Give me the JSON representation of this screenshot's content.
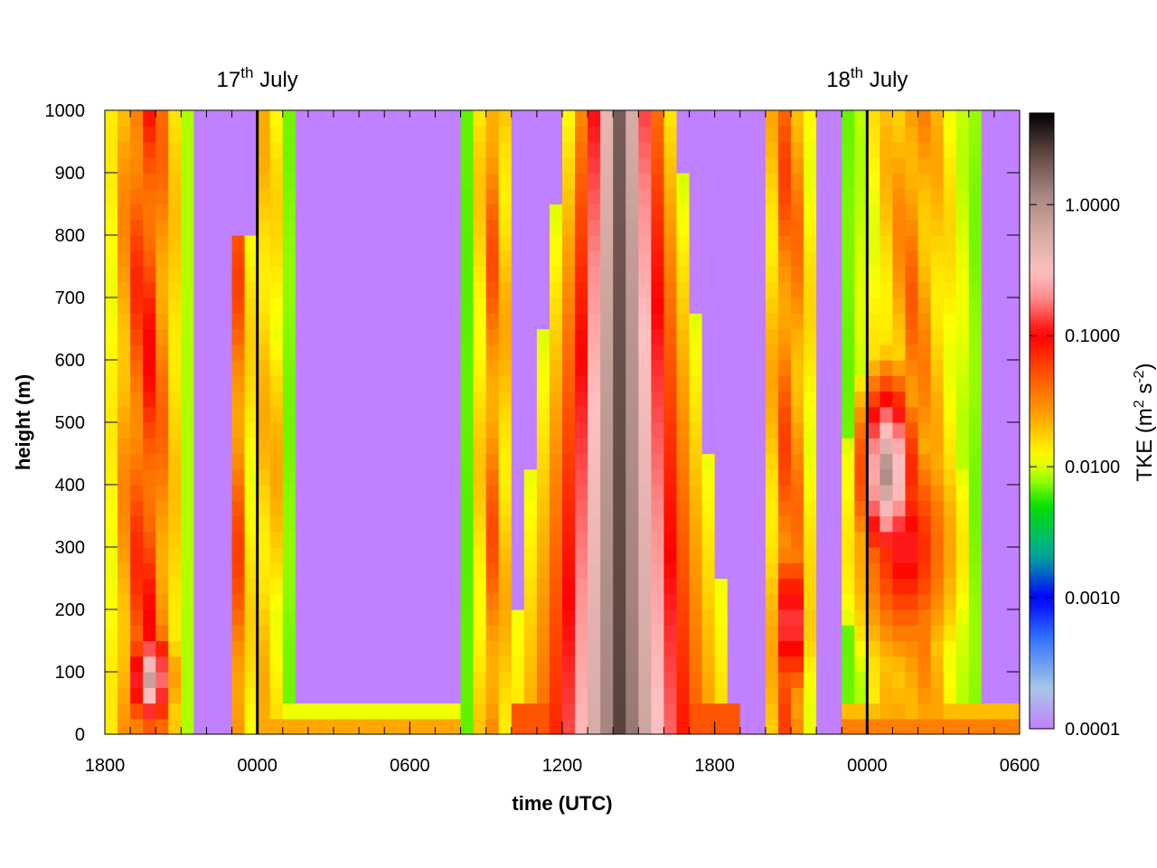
{
  "chart_data": {
    "type": "heatmap",
    "title": "",
    "xlabel": "time (UTC)",
    "ylabel": "height (m)",
    "x_unit": "hours since the first 1800 UTC tick",
    "xlim": [
      0,
      36
    ],
    "ylim": [
      0,
      1000
    ],
    "x_ticks": [
      {
        "hour": 0,
        "label": "1800"
      },
      {
        "hour": 6,
        "label": "0000"
      },
      {
        "hour": 12,
        "label": "0600"
      },
      {
        "hour": 18,
        "label": "1200"
      },
      {
        "hour": 24,
        "label": "1800"
      },
      {
        "hour": 30,
        "label": "0000"
      },
      {
        "hour": 36,
        "label": "0600"
      }
    ],
    "y_ticks": [
      0,
      100,
      200,
      300,
      400,
      500,
      600,
      700,
      800,
      900,
      1000
    ],
    "day_markers": [
      {
        "hour": 6,
        "day": "17",
        "suffix": "th",
        "month": "July"
      },
      {
        "hour": 30,
        "day": "18",
        "suffix": "th",
        "month": "July"
      }
    ],
    "colorbar": {
      "label": "TKE (m",
      "label_sup1": "2",
      "label_mid": " s",
      "label_sup2": "-2",
      "label_end": ")",
      "scale": "log",
      "range": [
        0.0001,
        5
      ],
      "ticks": [
        {
          "value": 0.0001,
          "label": "0.0001"
        },
        {
          "value": 0.001,
          "label": "0.0010"
        },
        {
          "value": 0.01,
          "label": "0.0100"
        },
        {
          "value": 0.1,
          "label": "0.1000"
        },
        {
          "value": 1.0,
          "label": "1.0000"
        }
      ],
      "colors": [
        [
          0.0001,
          "#c080ff"
        ],
        [
          0.0002,
          "#a8c8e8"
        ],
        [
          0.0005,
          "#3070ff"
        ],
        [
          0.001,
          "#0000ff"
        ],
        [
          0.002,
          "#00a0a0"
        ],
        [
          0.003,
          "#00c060"
        ],
        [
          0.005,
          "#00e000"
        ],
        [
          0.008,
          "#a0ff00"
        ],
        [
          0.012,
          "#ffff00"
        ],
        [
          0.025,
          "#ffa000"
        ],
        [
          0.06,
          "#ff4000"
        ],
        [
          0.1,
          "#ff0000"
        ],
        [
          0.2,
          "#ff9090"
        ],
        [
          0.3,
          "#ffc0c0"
        ],
        [
          0.6,
          "#d4aaa4"
        ],
        [
          1.2,
          "#a58580"
        ],
        [
          2.5,
          "#5e4641"
        ],
        [
          5.0,
          "#000000"
        ]
      ]
    },
    "grid": {
      "dx_hours": 0.5,
      "dz_m": 25
    },
    "series": [
      {
        "kind": "day_column",
        "t0": 15.8,
        "t1": 24.8,
        "center": 20.3,
        "halfwidth": 4.3,
        "top": 1040,
        "topwidth": 2.4,
        "peak": 2.8,
        "edge": 0.012
      },
      {
        "kind": "column",
        "t0": 0.0,
        "t1": 3.4,
        "center": 1.6,
        "halfwidth": 1.7,
        "ztop": 1000,
        "peak": 0.13,
        "edge": 0.008
      },
      {
        "kind": "column",
        "t0": 4.8,
        "t1": 6.0,
        "center": 5.3,
        "halfwidth": 0.8,
        "ztop": 800,
        "peak": 0.07,
        "edge": 0.006
      },
      {
        "kind": "column",
        "t0": 6.0,
        "t1": 7.5,
        "center": 6.4,
        "halfwidth": 1.0,
        "ztop": 1000,
        "peak": 0.03,
        "edge": 0.006
      },
      {
        "kind": "column",
        "t0": 13.8,
        "t1": 16.0,
        "center": 15.3,
        "halfwidth": 1.1,
        "ztop": 1000,
        "peak": 0.06,
        "edge": 0.006
      },
      {
        "kind": "column",
        "t0": 25.8,
        "t1": 28.2,
        "center": 26.9,
        "halfwidth": 1.4,
        "ztop": 1000,
        "peak": 0.08,
        "edge": 0.006
      },
      {
        "kind": "column",
        "t0": 29.0,
        "t1": 34.6,
        "center": 31.8,
        "halfwidth": 2.8,
        "ztop": 1000,
        "peak": 0.05,
        "edge": 0.006
      },
      {
        "kind": "blob",
        "center": 1.8,
        "zc": 90,
        "rx": 1.2,
        "rz": 120,
        "peak": 0.9
      },
      {
        "kind": "blob",
        "center": 6.6,
        "zc": 420,
        "rx": 0.4,
        "rz": 260,
        "peak": 0.04
      },
      {
        "kind": "blob",
        "center": 27.0,
        "zc": 180,
        "rx": 0.9,
        "rz": 180,
        "peak": 0.35
      },
      {
        "kind": "blob",
        "center": 30.8,
        "zc": 420,
        "rx": 1.6,
        "rz": 220,
        "peak": 1.3
      },
      {
        "kind": "blob",
        "center": 31.5,
        "zc": 300,
        "rx": 2.6,
        "rz": 260,
        "peak": 0.15
      },
      {
        "kind": "surface",
        "t0": 6.0,
        "t1": 14.0,
        "depth": 40,
        "peak": 0.03
      },
      {
        "kind": "surface",
        "t0": 29.0,
        "t1": 36.0,
        "depth": 50,
        "peak": 0.04
      }
    ]
  }
}
